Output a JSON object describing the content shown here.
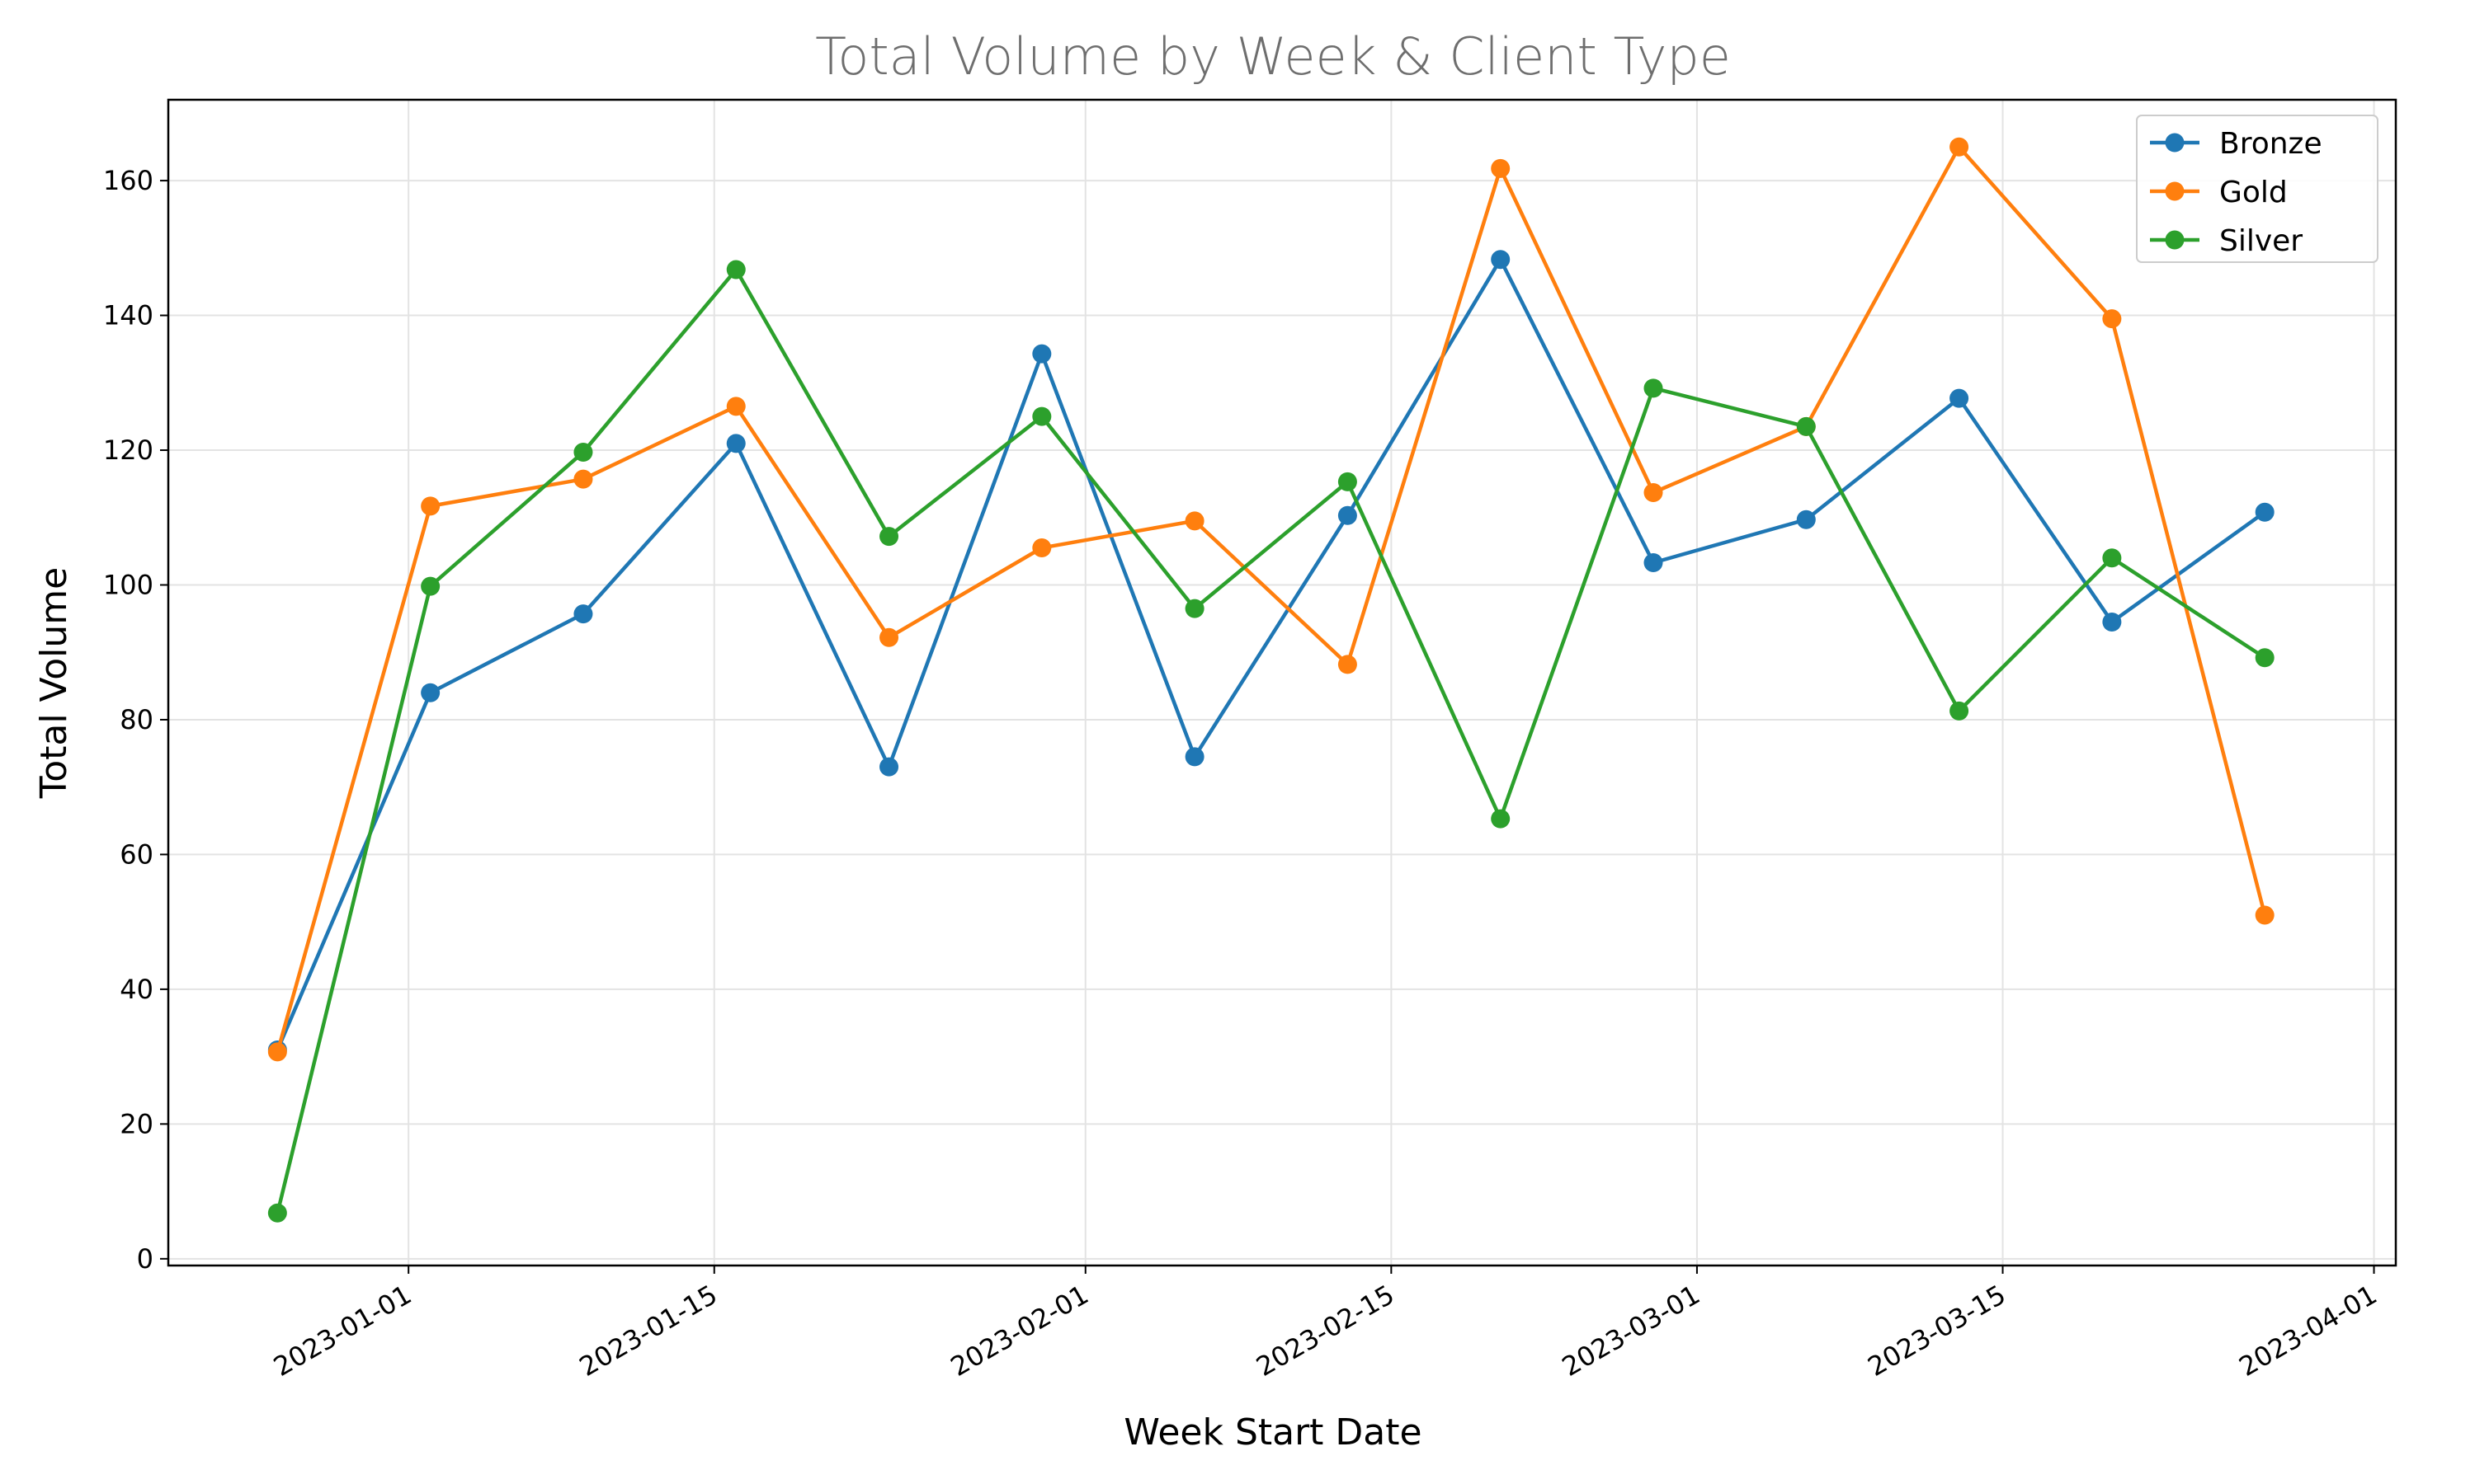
{
  "chart_data": {
    "type": "line",
    "title": "Total Volume by Week & Client Type",
    "xlabel": "Week Start Date",
    "ylabel": "Total Volume",
    "x": [
      "2022-12-26",
      "2023-01-02",
      "2023-01-09",
      "2023-01-16",
      "2023-01-23",
      "2023-01-30",
      "2023-02-06",
      "2023-02-13",
      "2023-02-20",
      "2023-02-27",
      "2023-03-06",
      "2023-03-13",
      "2023-03-20",
      "2023-03-27"
    ],
    "xlim": [
      "2022-12-21",
      "2023-04-02"
    ],
    "x_ticks": [
      "2023-01-01",
      "2023-01-15",
      "2023-02-01",
      "2023-02-15",
      "2023-03-01",
      "2023-03-15",
      "2023-04-01"
    ],
    "ylim": [
      -1,
      172
    ],
    "y_ticks": [
      0,
      20,
      40,
      60,
      80,
      100,
      120,
      140,
      160
    ],
    "grid": true,
    "legend_position": "top-right",
    "marker": "circle",
    "series": [
      {
        "name": "Bronze",
        "color": "#1f77b4",
        "values": [
          31,
          84,
          95.7,
          121,
          73,
          134.3,
          74.5,
          110.3,
          148.3,
          103.3,
          109.7,
          127.7,
          94.5,
          110.8
        ]
      },
      {
        "name": "Gold",
        "color": "#ff7f0e",
        "values": [
          30.7,
          111.7,
          115.7,
          126.5,
          92.2,
          105.5,
          109.5,
          88.2,
          161.8,
          113.7,
          123.5,
          165,
          139.5,
          51
        ]
      },
      {
        "name": "Silver",
        "color": "#2ca02c",
        "values": [
          6.8,
          99.8,
          119.7,
          146.8,
          107.2,
          125,
          96.5,
          115.3,
          65.3,
          129.2,
          123.5,
          81.3,
          104,
          89.2
        ]
      }
    ]
  }
}
